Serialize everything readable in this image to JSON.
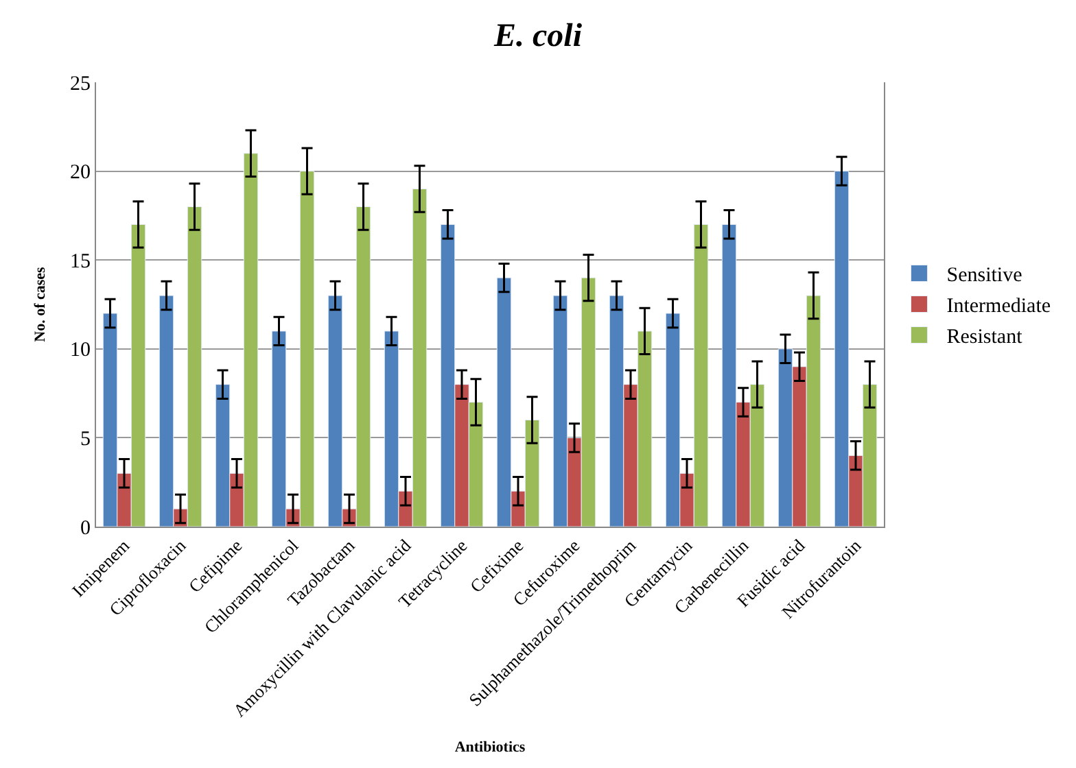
{
  "chart_data": {
    "type": "bar",
    "title": "E. coli",
    "xlabel": "Antibiotics",
    "ylabel": "No. of cases",
    "categories": [
      "Imipenem",
      "Ciprofloxacin",
      "Cefipime",
      "Chloramphenicol",
      "Tazobactam",
      "Amoxycillin with Clavulanic acid",
      "Tetracycline",
      "Cefixime",
      "Cefuroxime",
      "Sulphamethazole/Trimethoprim",
      "Gentamycin",
      "Carbenecillin",
      "Fusidic acid",
      "Nitrofurantoin"
    ],
    "series": [
      {
        "name": "Sensitive",
        "color": "#4f81bd",
        "values": [
          12,
          13,
          8,
          11,
          13,
          11,
          17,
          14,
          13,
          13,
          12,
          17,
          10,
          20
        ],
        "errors": [
          0.8,
          0.8,
          0.8,
          0.8,
          0.8,
          0.8,
          0.8,
          0.8,
          0.8,
          0.8,
          0.8,
          0.8,
          0.8,
          0.8
        ]
      },
      {
        "name": "Intermediate",
        "color": "#c0504d",
        "values": [
          3,
          1,
          3,
          1,
          1,
          2,
          8,
          2,
          5,
          8,
          3,
          7,
          9,
          4
        ],
        "errors": [
          0.8,
          0.8,
          0.8,
          0.8,
          0.8,
          0.8,
          0.8,
          0.8,
          0.8,
          0.8,
          0.8,
          0.8,
          0.8,
          0.8
        ]
      },
      {
        "name": "Resistant",
        "color": "#9bbb59",
        "values": [
          17,
          18,
          21,
          20,
          18,
          19,
          7,
          6,
          14,
          11,
          17,
          8,
          13,
          8
        ],
        "errors": [
          1.3,
          1.3,
          1.3,
          1.3,
          1.3,
          1.3,
          1.3,
          1.3,
          1.3,
          1.3,
          1.3,
          1.3,
          1.3,
          1.3
        ]
      }
    ],
    "ylim": [
      0,
      25
    ],
    "yticks": [
      0,
      5,
      10,
      15,
      20,
      25
    ],
    "grid": "y",
    "legend": "right"
  }
}
